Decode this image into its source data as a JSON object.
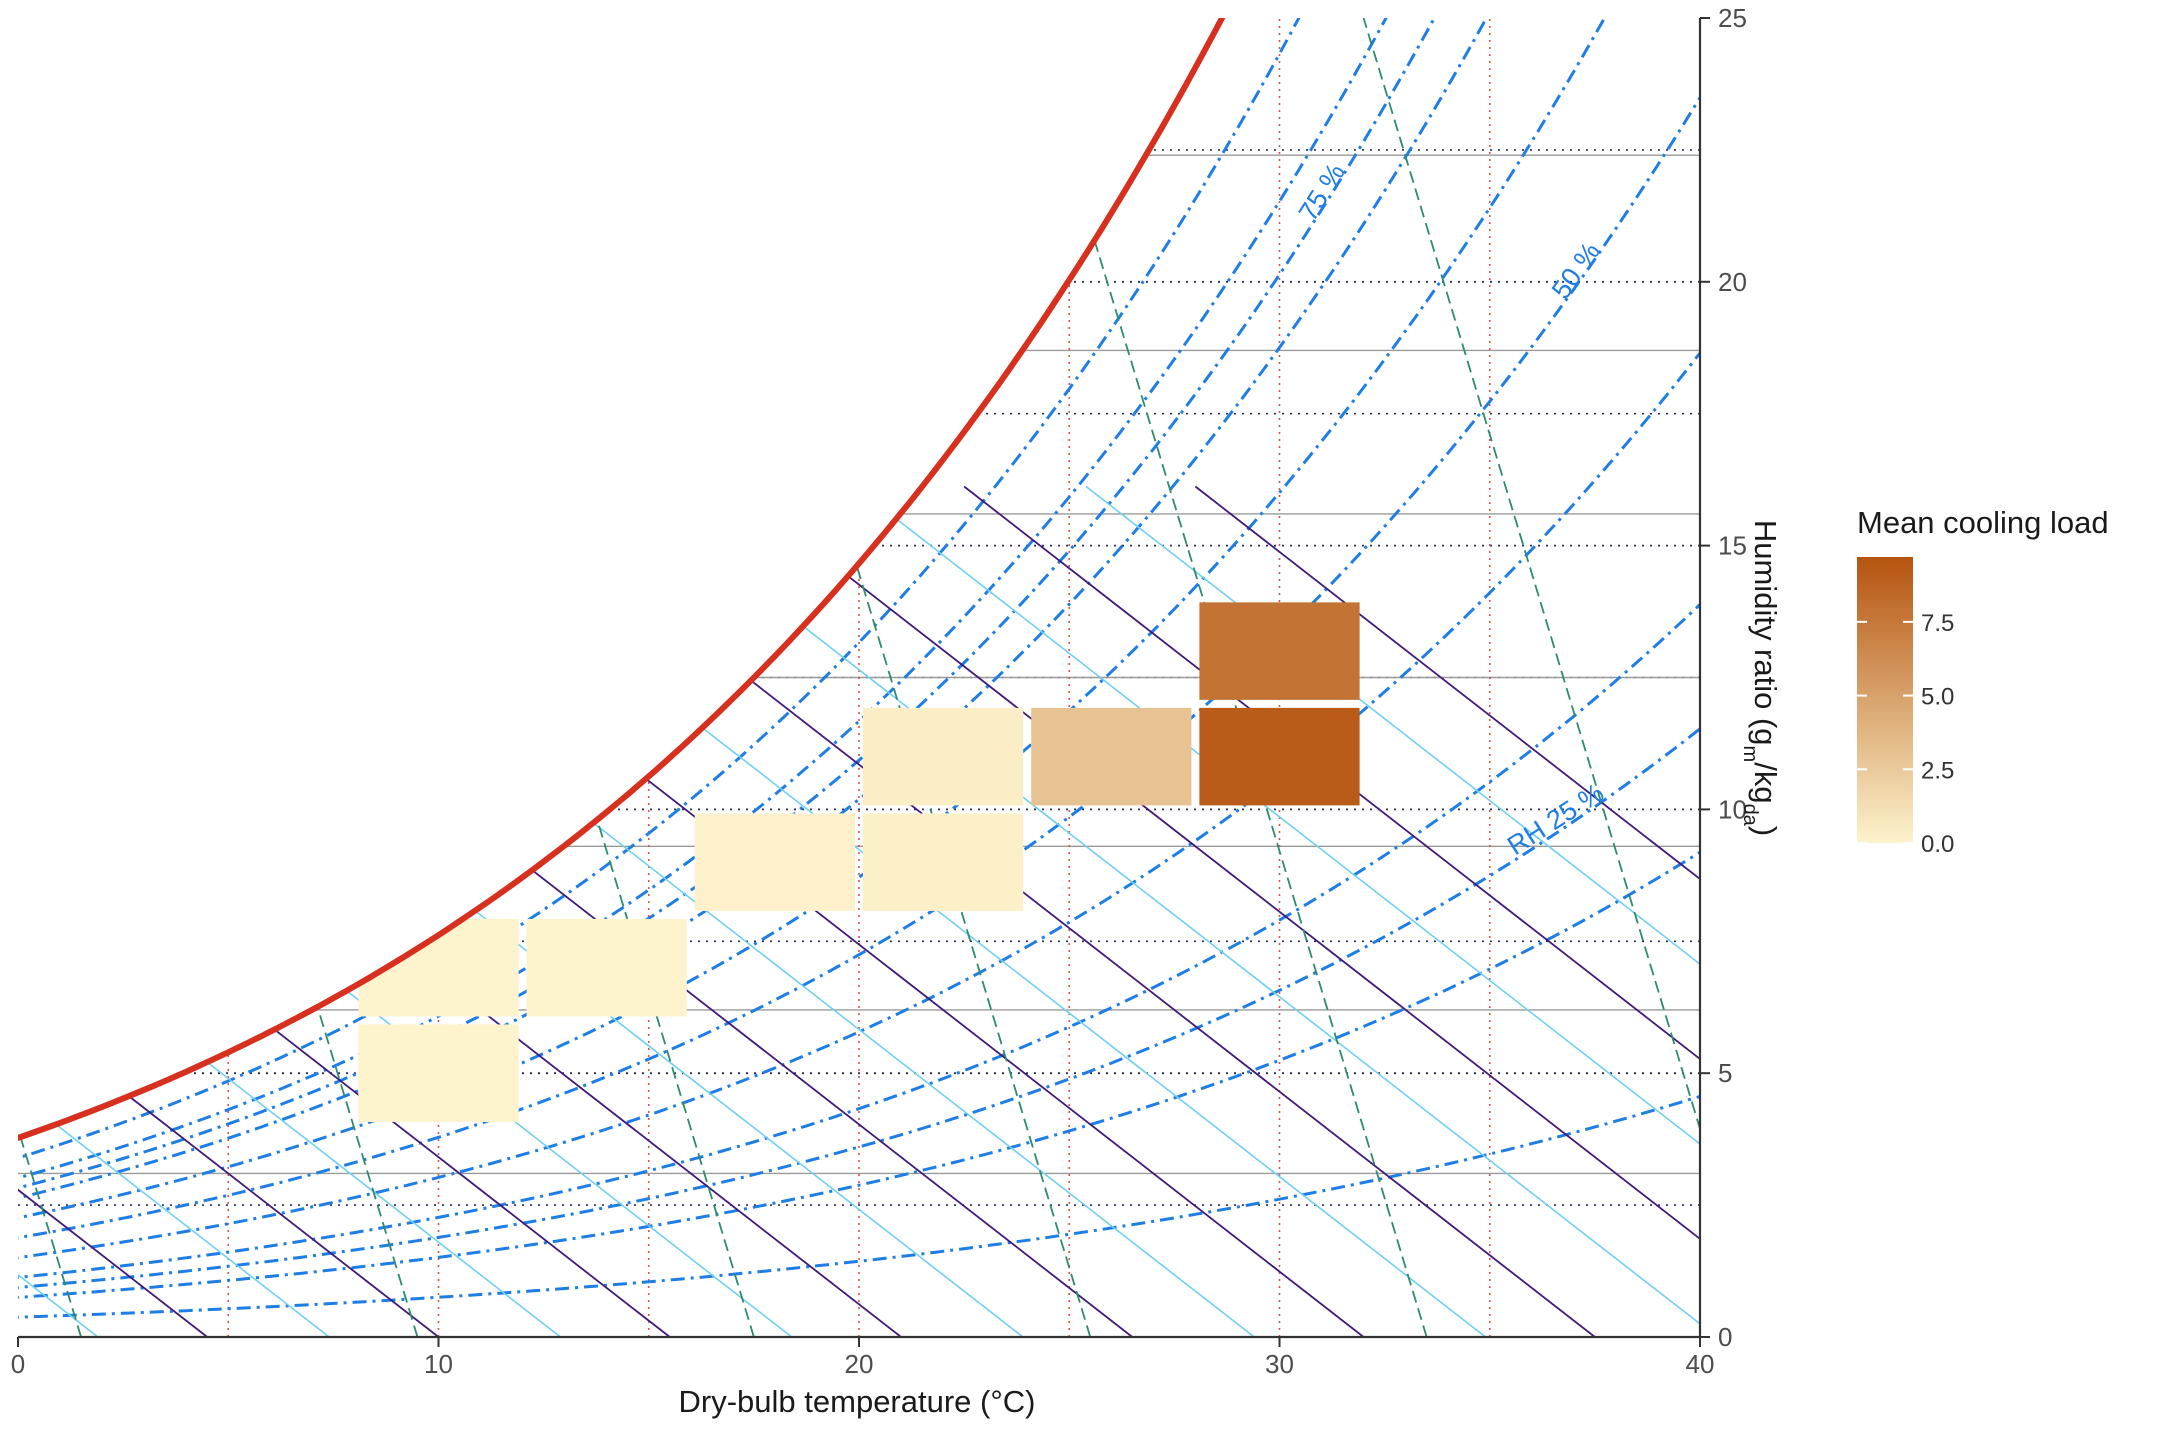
{
  "chart_data": {
    "type": "heatmap",
    "title": "",
    "xlabel": "Dry-bulb temperature (°C)",
    "ylabel_parts": {
      "base": "Humidity ratio (g",
      "sub1": "m",
      "mid": "/kg",
      "sub2": "da",
      "end": ")"
    },
    "xlim": [
      0,
      40
    ],
    "ylim": [
      0,
      25
    ],
    "x_ticks": [
      "0",
      "10",
      "20",
      "30",
      "40"
    ],
    "y_ticks": [
      "0",
      "5",
      "10",
      "15",
      "20",
      "25"
    ],
    "x_tick_values": [
      0,
      10,
      20,
      30,
      40
    ],
    "y_tick_values": [
      0,
      5,
      10,
      15,
      20,
      25
    ],
    "bin_width_c": 4,
    "bin_height_g_per_kg": 2,
    "cells": [
      {
        "x_min": 8,
        "x_max": 12,
        "y_min": 4,
        "y_max": 6,
        "value": 0.0
      },
      {
        "x_min": 8,
        "x_max": 12,
        "y_min": 6,
        "y_max": 8,
        "value": 0.0
      },
      {
        "x_min": 12,
        "x_max": 16,
        "y_min": 6,
        "y_max": 8,
        "value": 0.0
      },
      {
        "x_min": 16,
        "x_max": 20,
        "y_min": 8,
        "y_max": 10,
        "value": 0.1
      },
      {
        "x_min": 20,
        "x_max": 24,
        "y_min": 8,
        "y_max": 10,
        "value": 0.2
      },
      {
        "x_min": 20,
        "x_max": 24,
        "y_min": 10,
        "y_max": 12,
        "value": 0.3
      },
      {
        "x_min": 24,
        "x_max": 28,
        "y_min": 10,
        "y_max": 12,
        "value": 3.0
      },
      {
        "x_min": 28,
        "x_max": 32,
        "y_min": 10,
        "y_max": 12,
        "value": 9.2
      },
      {
        "x_min": 28,
        "x_max": 32,
        "y_min": 12,
        "y_max": 14,
        "value": 7.8
      }
    ],
    "legend": {
      "title": "Mean cooling load",
      "labels": [
        "7.5",
        "5.0",
        "2.5",
        "0.0"
      ],
      "values": [
        7.5,
        5.0,
        2.5,
        0.0
      ],
      "range": [
        0,
        9.7
      ],
      "color_low": "#fdf3cc",
      "color_high": "#b5540f"
    },
    "rh_labels": [
      "75 %",
      "50 %",
      "RH 25 %"
    ],
    "rh_label_values": [
      75,
      50,
      25
    ],
    "rh_curves_percent": [
      10,
      20,
      25,
      30,
      40,
      50,
      60,
      70,
      75,
      80,
      90
    ],
    "saturation_curve_color": "#d7301f",
    "rh_color": "#1e7ee6",
    "enthalpy_color": "#3f1a7a",
    "specific_volume_color": "#2e8b6b",
    "wet_bulb_color": "#6fd0f2",
    "grid": true
  }
}
